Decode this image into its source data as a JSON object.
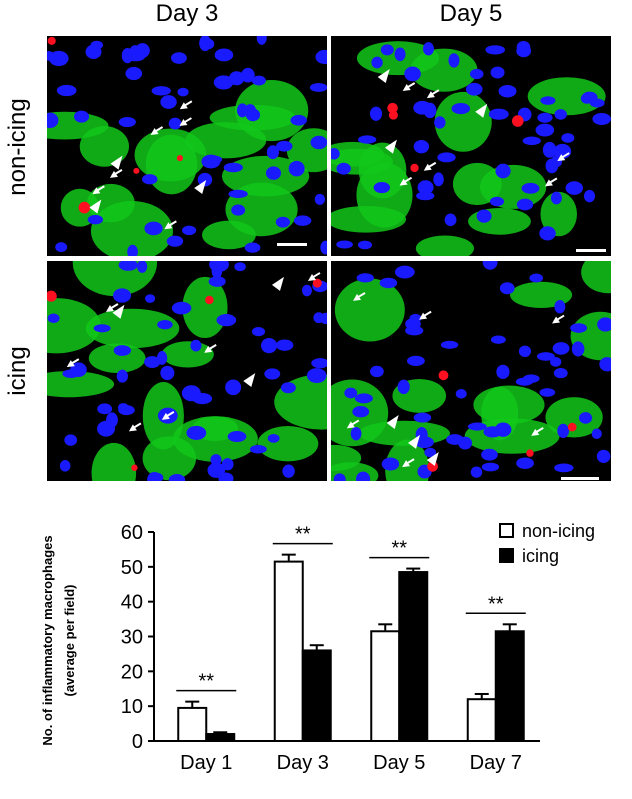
{
  "micrographs": {
    "columns": [
      "Day 3",
      "Day 5"
    ],
    "rows": [
      "non-icing",
      "icing"
    ]
  },
  "chart_data": {
    "type": "bar",
    "categories": [
      "Day 1",
      "Day 3",
      "Day 5",
      "Day 7"
    ],
    "series": [
      {
        "name": "non-icing",
        "values": [
          9.5,
          51.5,
          31.5,
          12
        ],
        "errors": [
          1.8,
          2,
          2,
          1.5
        ],
        "color": "#ffffff"
      },
      {
        "name": "icing",
        "values": [
          2,
          26,
          48.5,
          31.5
        ],
        "errors": [
          0.5,
          1.5,
          1,
          2
        ],
        "color": "#000000"
      }
    ],
    "ylabel_line1": "No. of inflammatory macrophages",
    "ylabel_line2": "(average per field)",
    "ylim": [
      0,
      60
    ],
    "yticks": [
      "0",
      "10",
      "20",
      "30",
      "40",
      "50",
      "60"
    ],
    "significance": [
      "**",
      "**",
      "**",
      "**"
    ],
    "legend_position": "top-right"
  }
}
